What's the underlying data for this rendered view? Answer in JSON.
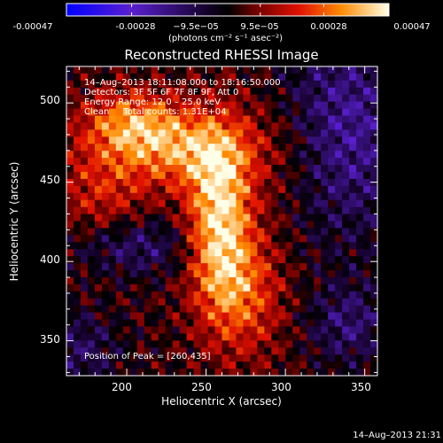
{
  "chart_data": {
    "type": "heatmap",
    "title": "Reconstructed RHESSI Image",
    "xlabel": "Heliocentric X (arcsec)",
    "ylabel": "Heliocentric Y (arcsec)",
    "xlim": [
      162,
      358
    ],
    "ylim": [
      328,
      523
    ],
    "x_ticks": [
      200,
      250,
      300,
      350
    ],
    "y_ticks": [
      350,
      400,
      450,
      500
    ],
    "colorbar": {
      "min": -0.00047,
      "max": 0.00047,
      "tick_values": [
        -0.00047,
        -0.00028,
        -9.5e-05,
        9.5e-05,
        0.00028,
        0.00047
      ],
      "tick_labels": [
        "-0.00047",
        "-0.00028",
        "−9.5e−05",
        "9.5e−05",
        "0.00028",
        "0.00047"
      ],
      "units_label": "(photons cm⁻² s⁻¹ asec⁻²)"
    },
    "annotations": {
      "time_range": "14–Aug–2013 18:11:08.000 to 18:16:50.000",
      "detectors": "Detectors: 3F 5F 6F 7F 8F 9F, Att 0",
      "energy": "Energy Range: 12.0 – 25.0 keV",
      "clean": "Clean     Total counts: 1.31E+04",
      "peak": "Position of Peak = [260,435]"
    },
    "peak": [
      260,
      435
    ],
    "timestamp": "14–Aug–2013 21:31"
  }
}
